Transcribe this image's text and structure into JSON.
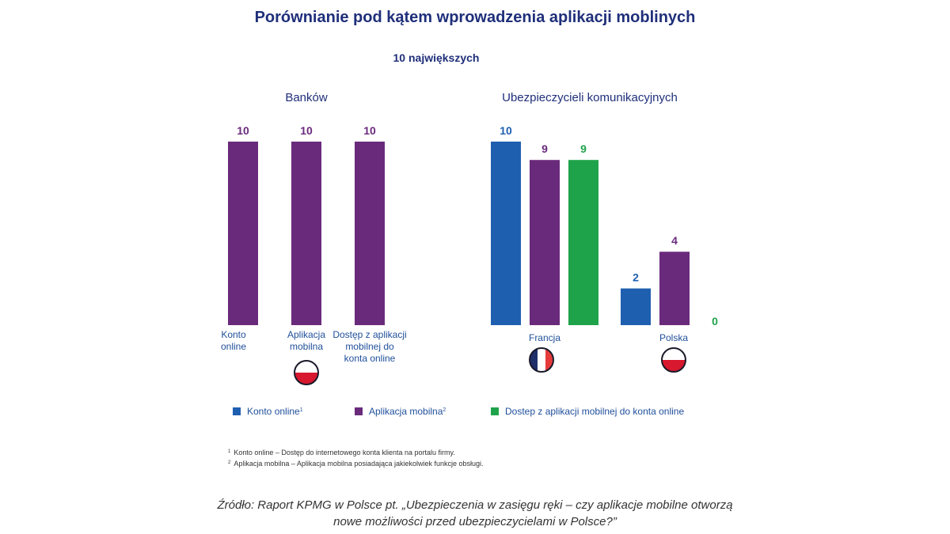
{
  "title": "Porównianie pod kątem wprowadzenia aplikacji moblinych",
  "subtitle": "10 największych",
  "colors": {
    "konto": "#1f5fb0",
    "aplikacja": "#6a2a7c",
    "dostep": "#1fa34a",
    "title": "#1f2f7a"
  },
  "chart_data": [
    {
      "type": "bar",
      "title": "Banków",
      "categories": [
        {
          "label_lines": [
            "Konto",
            "online"
          ],
          "value": 10,
          "series": "konto"
        },
        {
          "label_lines": [
            "Aplikacja",
            "mobilna"
          ],
          "value": 10,
          "series": "konto"
        },
        {
          "label_lines": [
            "Dostęp z aplikacji",
            "mobilnej do",
            "konta online"
          ],
          "value": 10,
          "series": "konto"
        }
      ],
      "bar_color": "aplikacja",
      "flag": "poland-flag-icon",
      "ylim": [
        0,
        10
      ]
    },
    {
      "type": "bar",
      "title": "Ubezpieczycieli komunikacyjnych",
      "categories": [
        "Francja",
        "Polska"
      ],
      "flags": [
        "france-flag-icon",
        "poland-flag-icon"
      ],
      "series": [
        {
          "name": "Konto online",
          "key": "konto",
          "values": [
            10,
            2
          ]
        },
        {
          "name": "Aplikacja mobilna",
          "key": "aplikacja",
          "values": [
            9,
            4
          ]
        },
        {
          "name": "Dostęp z aplikacji mobilnej do konta online",
          "key": "dostep",
          "values": [
            9,
            0
          ]
        }
      ],
      "ylim": [
        0,
        10
      ]
    }
  ],
  "legend": [
    {
      "label": "Konto online",
      "sup": "1",
      "key": "konto"
    },
    {
      "label": "Aplikacja mobilna",
      "sup": "2",
      "key": "aplikacja"
    },
    {
      "label": "Dostep z aplikacji mobilnej do konta online",
      "sup": "",
      "key": "dostep"
    }
  ],
  "footnotes": [
    {
      "sup": "1",
      "text": "Konto online – Dostęp do internetowego konta klienta na portalu firmy."
    },
    {
      "sup": "2",
      "text": "Aplikacja mobilna – Aplikacja mobilna posiadająca jakiekolwiek funkcje obsługi."
    }
  ],
  "source": [
    "Źródło: Raport KPMG w Polsce pt. „Ubezpieczenia w zasięgu ręki – czy aplikacje mobilne otworzą",
    "nowe możliwości przed ubezpieczycielami w Polsce?”"
  ]
}
